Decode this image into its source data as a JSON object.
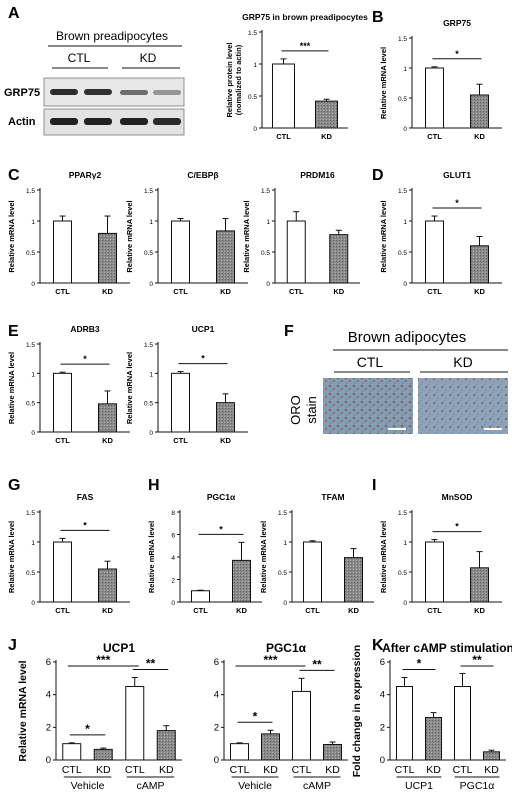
{
  "panel_letters": [
    "A",
    "B",
    "C",
    "D",
    "E",
    "F",
    "G",
    "H",
    "I",
    "J",
    "K"
  ],
  "blot": {
    "title": "Brown preadipocytes",
    "groups": [
      "CTL",
      "KD"
    ],
    "rows": [
      "GRP75",
      "Actin"
    ]
  },
  "micrograph": {
    "title": "Brown adipocytes",
    "groups": [
      "CTL",
      "KD"
    ],
    "stain_label": [
      "ORO",
      "stain"
    ]
  },
  "chart_data": [
    {
      "id": "A2",
      "type": "bar",
      "title": "GRP75 in brown preadipocytes",
      "ylabel": [
        "Relative protein level",
        "(nomalized to actin)"
      ],
      "ylim": [
        0,
        1.5
      ],
      "yticks": [
        0,
        0.5,
        1,
        1.5
      ],
      "categories": [
        "CTL",
        "KD"
      ],
      "values": [
        1.0,
        0.42
      ],
      "errors": [
        0.08,
        0.03
      ],
      "fills": [
        "white",
        "gray"
      ],
      "sig": [
        {
          "a": 0,
          "b": 1,
          "label": "***"
        }
      ]
    },
    {
      "id": "B",
      "type": "bar",
      "title": "GRP75",
      "ylabel": [
        "Relative mRNA level"
      ],
      "ylim": [
        0,
        1.5
      ],
      "yticks": [
        0,
        0.5,
        1,
        1.5
      ],
      "categories": [
        "CTL",
        "KD"
      ],
      "values": [
        1.0,
        0.55
      ],
      "errors": [
        0.02,
        0.18
      ],
      "fills": [
        "white",
        "gray"
      ],
      "sig": [
        {
          "a": 0,
          "b": 1,
          "label": "*"
        }
      ]
    },
    {
      "id": "C1",
      "type": "bar",
      "title": "PPARγ2",
      "ylabel": [
        "Relative mRNA level"
      ],
      "ylim": [
        0,
        1.5
      ],
      "yticks": [
        0,
        0.5,
        1,
        1.5
      ],
      "categories": [
        "CTL",
        "KD"
      ],
      "values": [
        1.0,
        0.8
      ],
      "errors": [
        0.08,
        0.28
      ],
      "fills": [
        "white",
        "gray"
      ],
      "sig": []
    },
    {
      "id": "C2",
      "type": "bar",
      "title": "C/EBPβ",
      "ylabel": [
        "Relative mRNA level"
      ],
      "ylim": [
        0,
        1.5
      ],
      "yticks": [
        0,
        0.5,
        1,
        1.5
      ],
      "categories": [
        "CTL",
        "KD"
      ],
      "values": [
        1.0,
        0.84
      ],
      "errors": [
        0.04,
        0.2
      ],
      "fills": [
        "white",
        "gray"
      ],
      "sig": []
    },
    {
      "id": "C3",
      "type": "bar",
      "title": "PRDM16",
      "ylabel": [
        "Relative mRNA level"
      ],
      "ylim": [
        0,
        1.5
      ],
      "yticks": [
        0,
        0.5,
        1,
        1.5
      ],
      "categories": [
        "CTL",
        "KD"
      ],
      "values": [
        1.0,
        0.78
      ],
      "errors": [
        0.15,
        0.07
      ],
      "fills": [
        "white",
        "gray"
      ],
      "sig": []
    },
    {
      "id": "D",
      "type": "bar",
      "title": "GLUT1",
      "ylabel": [
        "Relative mRNA level"
      ],
      "ylim": [
        0,
        1.5
      ],
      "yticks": [
        0,
        0.5,
        1,
        1.5
      ],
      "categories": [
        "CTL",
        "KD"
      ],
      "values": [
        1.0,
        0.6
      ],
      "errors": [
        0.08,
        0.15
      ],
      "fills": [
        "white",
        "gray"
      ],
      "sig": [
        {
          "a": 0,
          "b": 1,
          "label": "*"
        }
      ]
    },
    {
      "id": "E1",
      "type": "bar",
      "title": "ADRB3",
      "ylabel": [
        "Relative mRNA level"
      ],
      "ylim": [
        0,
        1.5
      ],
      "yticks": [
        0,
        0.5,
        1,
        1.5
      ],
      "categories": [
        "CTL",
        "KD"
      ],
      "values": [
        1.0,
        0.48
      ],
      "errors": [
        0.02,
        0.22
      ],
      "fills": [
        "white",
        "gray"
      ],
      "sig": [
        {
          "a": 0,
          "b": 1,
          "label": "*"
        }
      ]
    },
    {
      "id": "E2",
      "type": "bar",
      "title": "UCP1",
      "ylabel": [
        "Relative mRNA level"
      ],
      "ylim": [
        0,
        1.5
      ],
      "yticks": [
        0,
        0.5,
        1,
        1.5
      ],
      "categories": [
        "CTL",
        "KD"
      ],
      "values": [
        1.0,
        0.5
      ],
      "errors": [
        0.03,
        0.15
      ],
      "fills": [
        "white",
        "gray"
      ],
      "sig": [
        {
          "a": 0,
          "b": 1,
          "label": "*"
        }
      ]
    },
    {
      "id": "G",
      "type": "bar",
      "title": "FAS",
      "ylabel": [
        "Relative mRNA level"
      ],
      "ylim": [
        0,
        1.5
      ],
      "yticks": [
        0,
        0.5,
        1,
        1.5
      ],
      "categories": [
        "CTL",
        "KD"
      ],
      "values": [
        1.0,
        0.55
      ],
      "errors": [
        0.06,
        0.13
      ],
      "fills": [
        "white",
        "gray"
      ],
      "sig": [
        {
          "a": 0,
          "b": 1,
          "label": "*"
        }
      ]
    },
    {
      "id": "H1",
      "type": "bar",
      "title": "PGC1α",
      "ylabel": [
        "Relative mRNA level"
      ],
      "ylim": [
        0,
        8
      ],
      "yticks": [
        0,
        2,
        4,
        6,
        8
      ],
      "categories": [
        "CTL",
        "KD"
      ],
      "values": [
        1.0,
        3.7
      ],
      "errors": [
        0.05,
        1.6
      ],
      "fills": [
        "white",
        "gray"
      ],
      "sig": [
        {
          "a": 0,
          "b": 1,
          "label": "*"
        }
      ]
    },
    {
      "id": "H2",
      "type": "bar",
      "title": "TFAM",
      "ylabel": [
        "Relative mRNA level"
      ],
      "ylim": [
        0,
        1.5
      ],
      "yticks": [
        0,
        0.5,
        1,
        1.5
      ],
      "categories": [
        "CTL",
        "KD"
      ],
      "values": [
        1.0,
        0.74
      ],
      "errors": [
        0.02,
        0.15
      ],
      "fills": [
        "white",
        "gray"
      ],
      "sig": []
    },
    {
      "id": "I",
      "type": "bar",
      "title": "MnSOD",
      "ylabel": [
        "Relative mRNA level"
      ],
      "ylim": [
        0,
        1.5
      ],
      "yticks": [
        0,
        0.5,
        1,
        1.5
      ],
      "categories": [
        "CTL",
        "KD"
      ],
      "values": [
        1.0,
        0.57
      ],
      "errors": [
        0.04,
        0.27
      ],
      "fills": [
        "white",
        "gray"
      ],
      "sig": [
        {
          "a": 0,
          "b": 1,
          "label": "*"
        }
      ]
    },
    {
      "id": "J1",
      "type": "bar",
      "title": "UCP1",
      "ylabel": [
        "Relative mRNA level"
      ],
      "ylim": [
        0,
        6
      ],
      "yticks": [
        0,
        2,
        4,
        6
      ],
      "categories": [
        "CTL",
        "KD",
        "CTL",
        "KD"
      ],
      "groups": [
        "Vehicle",
        "cAMP"
      ],
      "values": [
        1.0,
        0.65,
        4.5,
        1.8
      ],
      "errors": [
        0.05,
        0.08,
        0.55,
        0.3
      ],
      "fills": [
        "white",
        "gray",
        "white",
        "gray"
      ],
      "sig": [
        {
          "a": 0,
          "b": 1,
          "label": "*"
        },
        {
          "a": 0,
          "b": 2,
          "label": "***"
        },
        {
          "a": 2,
          "b": 3,
          "label": "**"
        }
      ]
    },
    {
      "id": "J2",
      "type": "bar",
      "title": "PGC1α",
      "ylabel": [],
      "ylim": [
        0,
        6
      ],
      "yticks": [
        0,
        2,
        4,
        6
      ],
      "categories": [
        "CTL",
        "KD",
        "CTL",
        "KD"
      ],
      "groups": [
        "Vehicle",
        "cAMP"
      ],
      "values": [
        1.0,
        1.6,
        4.2,
        0.95
      ],
      "errors": [
        0.05,
        0.22,
        0.8,
        0.15
      ],
      "fills": [
        "white",
        "gray",
        "white",
        "gray"
      ],
      "sig": [
        {
          "a": 0,
          "b": 1,
          "label": "*"
        },
        {
          "a": 0,
          "b": 2,
          "label": "***"
        },
        {
          "a": 2,
          "b": 3,
          "label": "**"
        }
      ]
    },
    {
      "id": "K",
      "type": "bar",
      "title": "After cAMP stimulation",
      "ylabel": [
        "Fold change in expression"
      ],
      "ylim": [
        0,
        6
      ],
      "yticks": [
        0,
        2,
        4,
        6
      ],
      "categories": [
        "CTL",
        "KD",
        "CTL",
        "KD"
      ],
      "groups": [
        "UCP1",
        "PGC1α"
      ],
      "values": [
        4.5,
        2.6,
        4.5,
        0.5
      ],
      "errors": [
        0.55,
        0.3,
        0.8,
        0.1
      ],
      "fills": [
        "white",
        "gray",
        "white",
        "gray"
      ],
      "sig": [
        {
          "a": 0,
          "b": 1,
          "label": "*"
        },
        {
          "a": 2,
          "b": 3,
          "label": "**"
        }
      ]
    }
  ]
}
